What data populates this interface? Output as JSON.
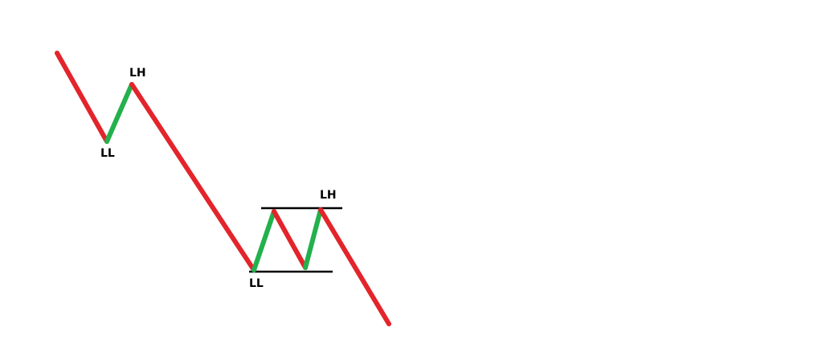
{
  "colors": {
    "down_leg": "#e3242b",
    "up_leg": "#22b14c",
    "level_line": "#000000",
    "background": "#ffffff"
  },
  "labels": {
    "first_low": "LL",
    "first_high": "LH",
    "second_low": "LL",
    "second_high": "LH"
  }
}
